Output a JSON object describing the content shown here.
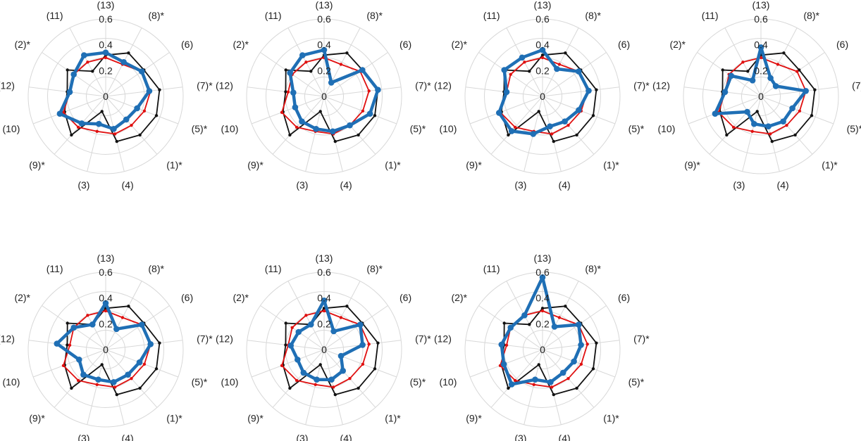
{
  "chart_data": {
    "type": "radar",
    "axes": [
      "(13)",
      "(8)*",
      "(6)",
      "(7)*",
      "(5)*",
      "(1)*",
      "(4)",
      "(3)",
      "(9)*",
      "(10)",
      "(12)",
      "(2)*",
      "(11)"
    ],
    "radial_ticks": [
      "0",
      "0.2",
      "0.4",
      "0.6"
    ],
    "radial_range": [
      0,
      0.6
    ],
    "grid_levels": [
      0.15,
      0.3,
      0.45,
      0.6
    ],
    "colors": {
      "black": "#111111",
      "red": "#e01010",
      "blue": "#1f6fb5",
      "grid": "#d8d8d8"
    },
    "reference_black": [
      0.32,
      0.38,
      0.36,
      0.42,
      0.42,
      0.4,
      0.36,
      0.12,
      0.4,
      0.34,
      0.3,
      0.36,
      0.22
    ],
    "reference_red": [
      0.3,
      0.28,
      0.34,
      0.35,
      0.32,
      0.3,
      0.3,
      0.28,
      0.32,
      0.35,
      0.28,
      0.3,
      0.3
    ],
    "panels": [
      {
        "blue": [
          0.34,
          0.3,
          0.34,
          0.34,
          0.26,
          0.24,
          0.26,
          0.22,
          0.28,
          0.38,
          0.28,
          0.3,
          0.36
        ]
      },
      {
        "blue": [
          0.36,
          0.12,
          0.36,
          0.42,
          0.38,
          0.3,
          0.28,
          0.26,
          0.26,
          0.24,
          0.24,
          0.32,
          0.36
        ]
      },
      {
        "blue": [
          0.36,
          0.24,
          0.34,
          0.36,
          0.3,
          0.26,
          0.24,
          0.3,
          0.36,
          0.36,
          0.28,
          0.36,
          0.34
        ]
      },
      {
        "blue": [
          0.38,
          0.16,
          0.14,
          0.35,
          0.26,
          0.26,
          0.24,
          0.22,
          0.16,
          0.38,
          0.28,
          0.28,
          0.14
        ]
      },
      {
        "blue": [
          0.36,
          0.18,
          0.34,
          0.35,
          0.28,
          0.26,
          0.26,
          0.24,
          0.26,
          0.22,
          0.38,
          0.3,
          0.22
        ]
      },
      {
        "blue": [
          0.38,
          0.16,
          0.34,
          0.3,
          0.14,
          0.22,
          0.24,
          0.24,
          0.24,
          0.22,
          0.26,
          0.24,
          0.22
        ]
      },
      {
        "blue": [
          0.56,
          0.2,
          0.34,
          0.3,
          0.26,
          0.24,
          0.26,
          0.24,
          0.36,
          0.32,
          0.32,
          0.3,
          0.3
        ]
      }
    ]
  }
}
